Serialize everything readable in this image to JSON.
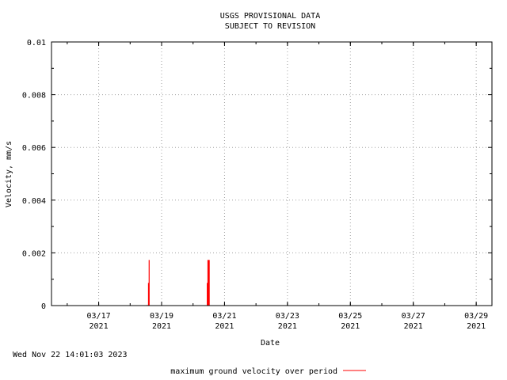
{
  "chart_data": {
    "type": "bar",
    "title_lines": [
      "USGS PROVISIONAL DATA",
      "SUBJECT TO REVISION"
    ],
    "xlabel": "Date",
    "ylabel": "Velocity, mm/s",
    "ylim": [
      0,
      0.01
    ],
    "xlim": [
      "2021-03-15T12:00",
      "2021-03-29T12:00"
    ],
    "y_ticks": [
      {
        "value": 0,
        "label": "0"
      },
      {
        "value": 0.002,
        "label": "0.002"
      },
      {
        "value": 0.004,
        "label": "0.004"
      },
      {
        "value": 0.006,
        "label": "0.006"
      },
      {
        "value": 0.008,
        "label": "0.008"
      },
      {
        "value": 0.01,
        "label": "0.01"
      }
    ],
    "x_ticks": [
      {
        "value": "2021-03-17",
        "label": "03/17",
        "year": "2021"
      },
      {
        "value": "2021-03-19",
        "label": "03/19",
        "year": "2021"
      },
      {
        "value": "2021-03-21",
        "label": "03/21",
        "year": "2021"
      },
      {
        "value": "2021-03-23",
        "label": "03/23",
        "year": "2021"
      },
      {
        "value": "2021-03-25",
        "label": "03/25",
        "year": "2021"
      },
      {
        "value": "2021-03-27",
        "label": "03/27",
        "year": "2021"
      },
      {
        "value": "2021-03-29",
        "label": "03/29",
        "year": "2021"
      }
    ],
    "grid": true,
    "legend_position": "bottom-center",
    "series": [
      {
        "name": "maximum ground velocity over period",
        "color": "#ff0000",
        "points": [
          {
            "x": "2021-03-18T13:00",
            "y": 2e-05
          },
          {
            "x": "2021-03-18T14:00",
            "y": 0.00086
          },
          {
            "x": "2021-03-18T14:30",
            "y": 0.00173
          },
          {
            "x": "2021-03-20T10:50",
            "y": 0.00086
          },
          {
            "x": "2021-03-20T11:20",
            "y": 0.00173
          },
          {
            "x": "2021-03-20T11:50",
            "y": 0.00173
          },
          {
            "x": "2021-03-20T12:20",
            "y": 0.00173
          }
        ]
      }
    ]
  },
  "timestamp": "Wed Nov 22 14:01:03 2023"
}
